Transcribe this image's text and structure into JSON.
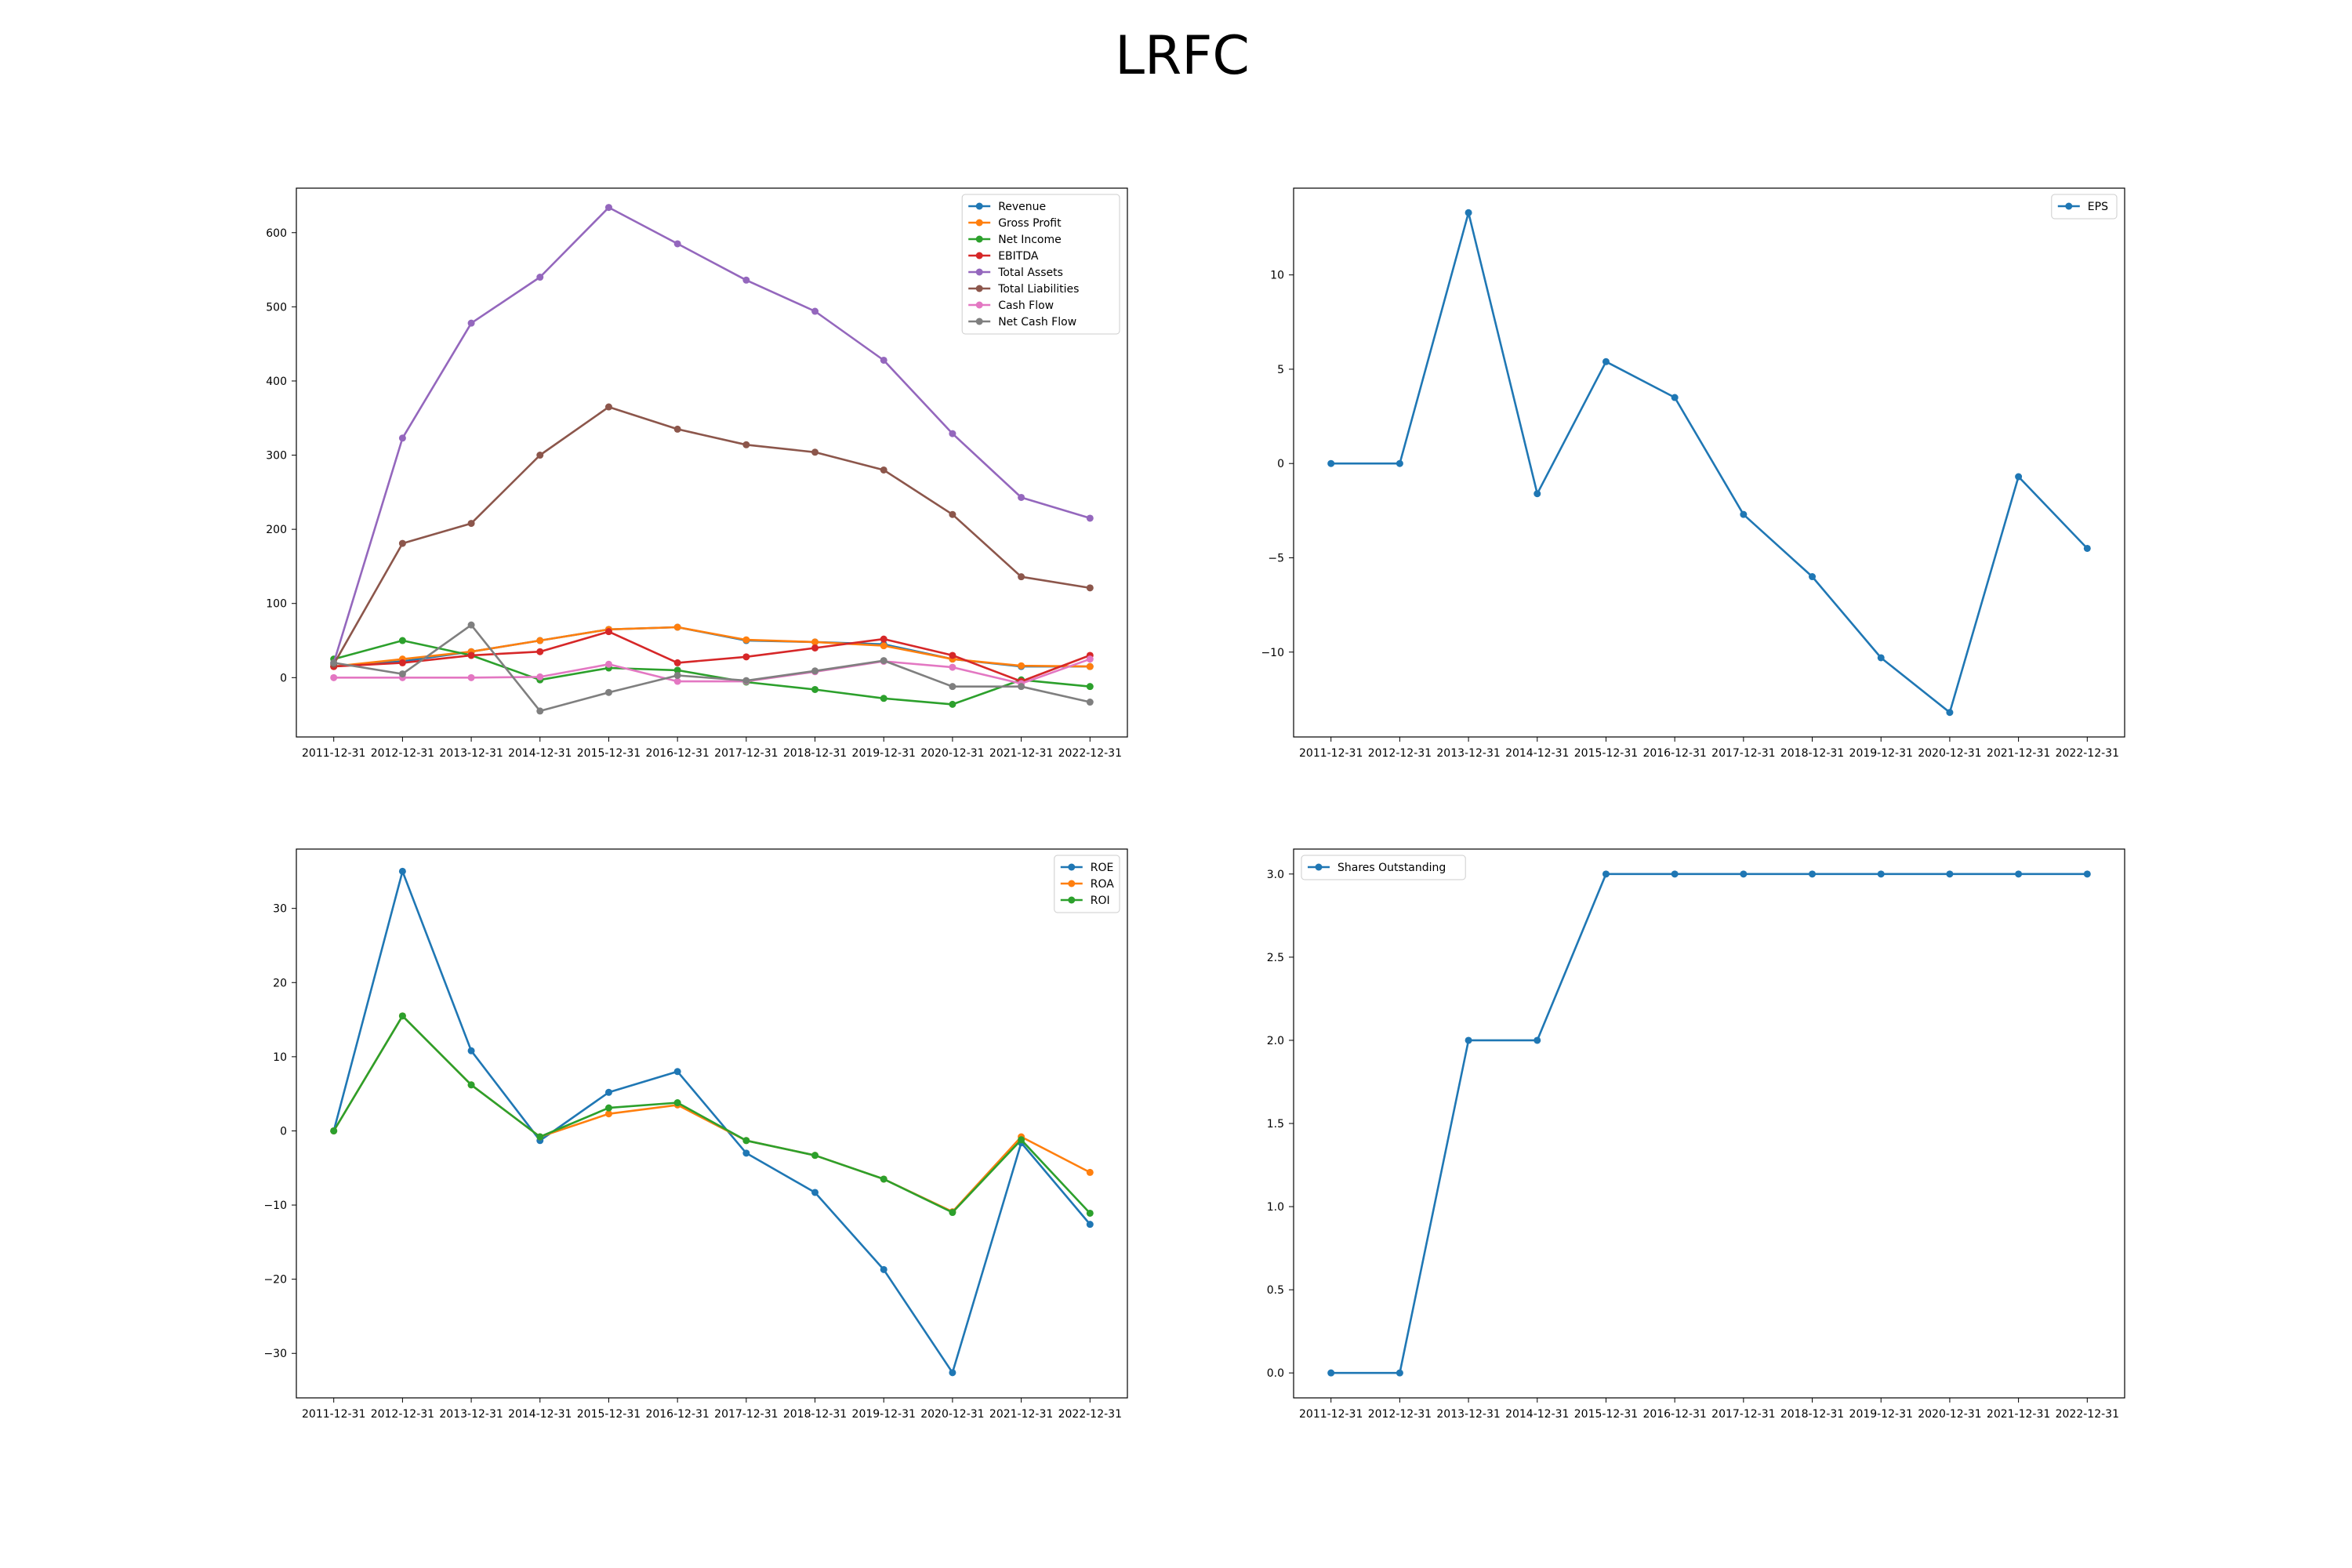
{
  "figure": {
    "title": "LRFC"
  },
  "chart_data": [
    {
      "type": "line",
      "x": [
        "2011-12-31",
        "2012-12-31",
        "2013-12-31",
        "2014-12-31",
        "2015-12-31",
        "2016-12-31",
        "2017-12-31",
        "2018-12-31",
        "2019-12-31",
        "2020-12-31",
        "2021-12-31",
        "2022-12-31"
      ],
      "ylim": [
        -80,
        660
      ],
      "yticks": [
        0,
        100,
        200,
        300,
        400,
        500,
        600
      ],
      "legend": "top-right",
      "grid": false,
      "series": [
        {
          "name": "Revenue",
          "color": "#1f77b4",
          "values": [
            15,
            22,
            35,
            50,
            65,
            68,
            50,
            48,
            45,
            25,
            15,
            15
          ]
        },
        {
          "name": "Gross Profit",
          "color": "#ff7f0e",
          "values": [
            15,
            25,
            35,
            50,
            65,
            68,
            51,
            48,
            43,
            25,
            16,
            15
          ]
        },
        {
          "name": "Net Income",
          "color": "#2ca02c",
          "values": [
            25,
            50,
            30,
            -3,
            13,
            10,
            -6,
            -16,
            -28,
            -36,
            -3,
            -12
          ]
        },
        {
          "name": "EBITDA",
          "color": "#d62728",
          "values": [
            15,
            20,
            30,
            35,
            62,
            20,
            28,
            40,
            52,
            30,
            -5,
            30
          ]
        },
        {
          "name": "Total Assets",
          "color": "#9467bd",
          "values": [
            20,
            323,
            478,
            540,
            634,
            585,
            536,
            494,
            428,
            329,
            243,
            215
          ]
        },
        {
          "name": "Total Liabilities",
          "color": "#8c564b",
          "values": [
            18,
            181,
            208,
            300,
            365,
            335,
            314,
            304,
            280,
            220,
            136,
            121
          ]
        },
        {
          "name": "Cash Flow",
          "color": "#e377c2",
          "values": [
            0,
            0,
            0,
            1,
            18,
            -5,
            -5,
            8,
            22,
            14,
            -8,
            25
          ]
        },
        {
          "name": "Net Cash Flow",
          "color": "#7f7f7f",
          "values": [
            20,
            5,
            71,
            -45,
            -20,
            3,
            -4,
            9,
            23,
            -12,
            -12,
            -33
          ]
        }
      ]
    },
    {
      "type": "line",
      "x": [
        "2011-12-31",
        "2012-12-31",
        "2013-12-31",
        "2014-12-31",
        "2015-12-31",
        "2016-12-31",
        "2017-12-31",
        "2018-12-31",
        "2019-12-31",
        "2020-12-31",
        "2021-12-31",
        "2022-12-31"
      ],
      "ylim": [
        -14.5,
        14.6
      ],
      "yticks": [
        -10,
        -5,
        0,
        5,
        10
      ],
      "legend": "top-right",
      "grid": false,
      "series": [
        {
          "name": "EPS",
          "color": "#1f77b4",
          "values": [
            0,
            0,
            13.3,
            -1.6,
            5.4,
            3.5,
            -2.7,
            -6.0,
            -10.3,
            -13.2,
            -0.7,
            -4.5
          ]
        }
      ]
    },
    {
      "type": "line",
      "x": [
        "2011-12-31",
        "2012-12-31",
        "2013-12-31",
        "2014-12-31",
        "2015-12-31",
        "2016-12-31",
        "2017-12-31",
        "2018-12-31",
        "2019-12-31",
        "2020-12-31",
        "2021-12-31",
        "2022-12-31"
      ],
      "ylim": [
        -36,
        38
      ],
      "yticks": [
        -30,
        -20,
        -10,
        0,
        10,
        20,
        30
      ],
      "legend": "top-right",
      "grid": false,
      "series": [
        {
          "name": "ROE",
          "color": "#1f77b4",
          "values": [
            0,
            35,
            10.8,
            -1.3,
            5.2,
            8.0,
            -3.0,
            -8.3,
            -18.7,
            -32.6,
            -1.6,
            -12.6
          ]
        },
        {
          "name": "ROA",
          "color": "#ff7f0e",
          "values": [
            0,
            15.5,
            6.2,
            -0.8,
            2.3,
            3.5,
            -1.3,
            -3.3,
            -6.5,
            -10.9,
            -0.8,
            -5.6
          ]
        },
        {
          "name": "ROI",
          "color": "#2ca02c",
          "values": [
            0,
            15.5,
            6.2,
            -0.8,
            3.1,
            3.8,
            -1.3,
            -3.3,
            -6.5,
            -11.0,
            -1.2,
            -11.1
          ]
        }
      ]
    },
    {
      "type": "line",
      "x": [
        "2011-12-31",
        "2012-12-31",
        "2013-12-31",
        "2014-12-31",
        "2015-12-31",
        "2016-12-31",
        "2017-12-31",
        "2018-12-31",
        "2019-12-31",
        "2020-12-31",
        "2021-12-31",
        "2022-12-31"
      ],
      "ylim": [
        -0.15,
        3.15
      ],
      "yticks": [
        0.0,
        0.5,
        1.0,
        1.5,
        2.0,
        2.5,
        3.0
      ],
      "yformat": "fixed1",
      "legend": "top-left",
      "grid": false,
      "series": [
        {
          "name": "Shares Outstanding",
          "color": "#1f77b4",
          "values": [
            0,
            0,
            2,
            2,
            3,
            3,
            3,
            3,
            3,
            3,
            3,
            3
          ]
        }
      ]
    }
  ]
}
